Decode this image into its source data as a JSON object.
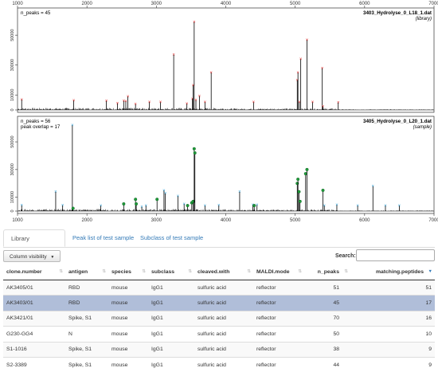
{
  "chart_data": [
    {
      "type": "bar",
      "title": "3403_Hydrolyse_0_L18_1.dat",
      "subtitle": "(library)",
      "annotation": "n_peaks = 45",
      "xlim": [
        1000,
        7000
      ],
      "ylim": [
        0,
        65000
      ],
      "x_ticks": [
        "1000",
        "2000",
        "3000",
        "4000",
        "5000",
        "6000",
        "7000"
      ],
      "y_ticks": [
        "0",
        "10000",
        "30000",
        "50000"
      ],
      "peaks": [
        {
          "x": 1060,
          "y": 7000
        },
        {
          "x": 1810,
          "y": 6500
        },
        {
          "x": 2280,
          "y": 6200
        },
        {
          "x": 2440,
          "y": 4500
        },
        {
          "x": 2530,
          "y": 6200
        },
        {
          "x": 2560,
          "y": 5800
        },
        {
          "x": 2590,
          "y": 9000
        },
        {
          "x": 2700,
          "y": 3900
        },
        {
          "x": 2900,
          "y": 5400
        },
        {
          "x": 3060,
          "y": 5200
        },
        {
          "x": 3250,
          "y": 37000
        },
        {
          "x": 3440,
          "y": 4200
        },
        {
          "x": 3520,
          "y": 7500
        },
        {
          "x": 3530,
          "y": 16500
        },
        {
          "x": 3545,
          "y": 59000
        },
        {
          "x": 3570,
          "y": 6600
        },
        {
          "x": 3620,
          "y": 9200
        },
        {
          "x": 3700,
          "y": 5200
        },
        {
          "x": 3790,
          "y": 25000
        },
        {
          "x": 4400,
          "y": 5200
        },
        {
          "x": 5030,
          "y": 20000
        },
        {
          "x": 5040,
          "y": 25000
        },
        {
          "x": 5060,
          "y": 5200
        },
        {
          "x": 5080,
          "y": 34000
        },
        {
          "x": 5170,
          "y": 47000
        },
        {
          "x": 5250,
          "y": 5200
        },
        {
          "x": 5390,
          "y": 28000
        },
        {
          "x": 5400,
          "y": 2500
        },
        {
          "x": 5620,
          "y": 5100
        }
      ]
    },
    {
      "type": "bar",
      "title": "3405_Hydrolyse_0_L20_1.dat",
      "subtitle": "(sample)",
      "annotation": "n_peaks = 56",
      "annotation2": "peak overlap = 17",
      "xlim": [
        1000,
        7000
      ],
      "ylim": [
        0,
        65000
      ],
      "x_ticks": [
        "1000",
        "2000",
        "3000",
        "4000",
        "5000",
        "6000",
        "7000"
      ],
      "y_ticks": [
        "0",
        "10000",
        "30000",
        "50000"
      ],
      "peaks": [
        {
          "x": 1060,
          "y": 4200,
          "m": "b"
        },
        {
          "x": 1550,
          "y": 14000,
          "m": "b"
        },
        {
          "x": 1650,
          "y": 4200,
          "m": "b"
        },
        {
          "x": 1790,
          "y": 62000,
          "m": "b"
        },
        {
          "x": 1800,
          "y": 2000,
          "m": "g"
        },
        {
          "x": 2200,
          "y": 4000,
          "m": "b"
        },
        {
          "x": 2530,
          "y": 5200,
          "m": "g"
        },
        {
          "x": 2700,
          "y": 8500,
          "m": "g"
        },
        {
          "x": 2710,
          "y": 5200,
          "m": "g"
        },
        {
          "x": 2790,
          "y": 3300,
          "m": "b"
        },
        {
          "x": 2850,
          "y": 4000,
          "m": "b"
        },
        {
          "x": 3010,
          "y": 8500,
          "m": "g"
        },
        {
          "x": 3110,
          "y": 15000,
          "m": "b"
        },
        {
          "x": 3130,
          "y": 12800,
          "m": "b"
        },
        {
          "x": 3310,
          "y": 11000,
          "m": "b"
        },
        {
          "x": 3400,
          "y": 5200,
          "m": "b"
        },
        {
          "x": 3450,
          "y": 4000,
          "m": "g"
        },
        {
          "x": 3510,
          "y": 6000,
          "m": "g"
        },
        {
          "x": 3530,
          "y": 7000,
          "m": "g"
        },
        {
          "x": 3545,
          "y": 45000,
          "m": "g"
        },
        {
          "x": 3555,
          "y": 42000,
          "m": "g"
        },
        {
          "x": 3700,
          "y": 4000,
          "m": "b"
        },
        {
          "x": 3900,
          "y": 4200,
          "m": "b"
        },
        {
          "x": 4200,
          "y": 14000,
          "m": "b"
        },
        {
          "x": 4390,
          "y": 4500,
          "m": "b"
        },
        {
          "x": 4410,
          "y": 4000,
          "m": "g"
        },
        {
          "x": 4450,
          "y": 4500,
          "m": "b"
        },
        {
          "x": 5030,
          "y": 20000,
          "m": "g"
        },
        {
          "x": 5040,
          "y": 23000,
          "m": "g"
        },
        {
          "x": 5055,
          "y": 14000,
          "m": "g"
        },
        {
          "x": 5070,
          "y": 7000,
          "m": "g"
        },
        {
          "x": 5150,
          "y": 27000,
          "m": "g"
        },
        {
          "x": 5170,
          "y": 30000,
          "m": "g"
        },
        {
          "x": 5400,
          "y": 15000,
          "m": "g"
        },
        {
          "x": 5420,
          "y": 4000,
          "m": "b"
        },
        {
          "x": 5600,
          "y": 4500,
          "m": "b"
        },
        {
          "x": 5900,
          "y": 4000,
          "m": "b"
        },
        {
          "x": 6120,
          "y": 18000,
          "m": "b"
        },
        {
          "x": 6300,
          "y": 4000,
          "m": "b"
        },
        {
          "x": 6500,
          "y": 4000,
          "m": "b"
        }
      ]
    }
  ],
  "colors": {
    "peak": "#000000",
    "library_marker": "#e03030",
    "sample_marker": "#3fa6d8",
    "match_marker": "#1f9a3a",
    "selected_row": "#b0bed9",
    "link": "#337ab7"
  },
  "tabs": [
    {
      "label": "Library comparison",
      "active": true
    },
    {
      "label": "Peak list of test sample",
      "active": false
    },
    {
      "label": "Subclass of test sample",
      "active": false
    }
  ],
  "controls": {
    "column_visibility": "Column visibility",
    "column_visibility_icon": "caret-down-icon",
    "search_label": "Search:",
    "search_value": ""
  },
  "table": {
    "columns": [
      "clone.number",
      "antigen",
      "species",
      "subclass",
      "cleaved.with",
      "MALDI.mode",
      "n_peaks",
      "matching.peptides"
    ],
    "sorted_column": "matching.peptides",
    "sort_direction": "desc",
    "rows": [
      [
        "AK3405/01",
        "RBD",
        "mouse",
        "IgG1",
        "sulfuric acid",
        "reflector",
        "51",
        "51"
      ],
      [
        "AK3403/01",
        "RBD",
        "mouse",
        "IgG1",
        "sulfuric acid",
        "reflector",
        "45",
        "17"
      ],
      [
        "AK3421/01",
        "Spike, S1",
        "mouse",
        "IgG1",
        "sulfuric acid",
        "reflector",
        "70",
        "16"
      ],
      [
        "G230-GG4",
        "N",
        "mouse",
        "IgG1",
        "sulfuric acid",
        "reflector",
        "50",
        "10"
      ],
      [
        "S1-1016",
        "Spike, S1",
        "mouse",
        "IgG1",
        "sulfuric acid",
        "reflector",
        "38",
        "9"
      ],
      [
        "S2-3389",
        "Spike, S1",
        "mouse",
        "IgG1",
        "sulfuric acid",
        "reflector",
        "44",
        "9"
      ]
    ],
    "selected_row": 1
  }
}
